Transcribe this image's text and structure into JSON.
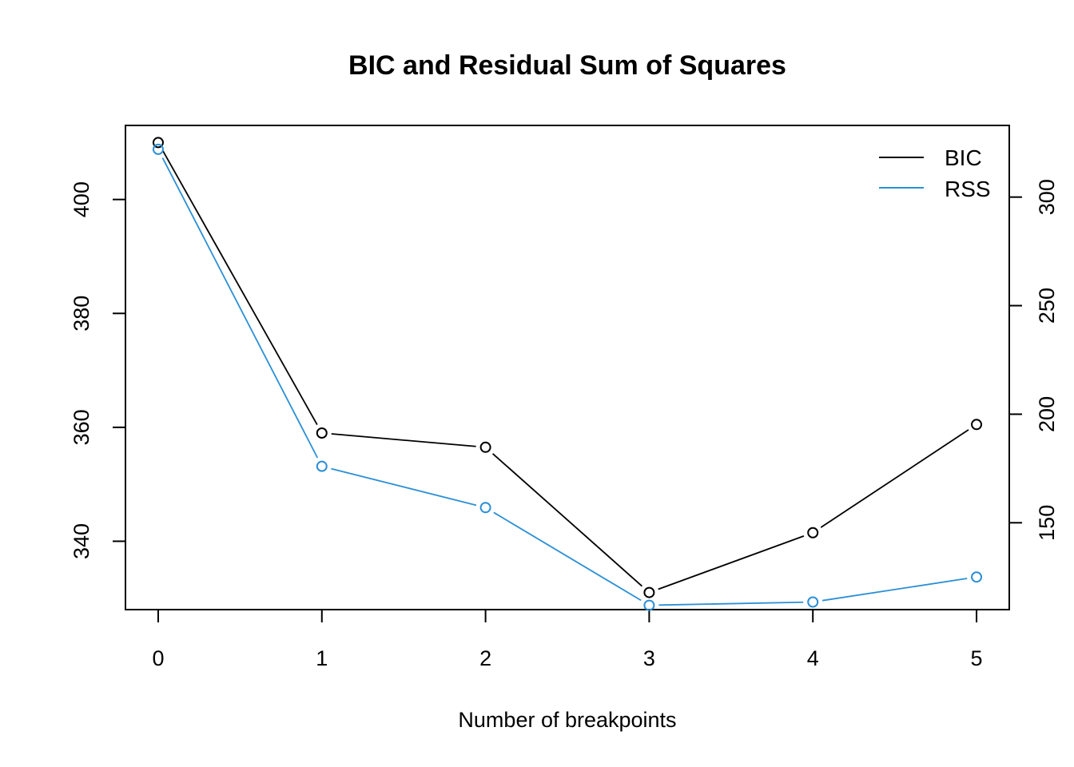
{
  "chart_data": {
    "type": "line",
    "title": "BIC and Residual Sum of Squares",
    "xlabel": "Number of breakpoints",
    "ylabel": "",
    "y2label": "",
    "x": [
      0,
      1,
      2,
      3,
      4,
      5
    ],
    "xlim": [
      -0.2,
      5.2
    ],
    "ylim": [
      328,
      413
    ],
    "y2lim": [
      110,
      333
    ],
    "yticks": [
      340,
      360,
      380,
      400
    ],
    "y2ticks": [
      150,
      200,
      250,
      300
    ],
    "series": [
      {
        "name": "BIC",
        "axis": "left",
        "color": "#000000",
        "values": [
          410,
          359,
          356.5,
          331,
          341.5,
          360.5
        ]
      },
      {
        "name": "RSS",
        "axis": "right",
        "color": "#2b8fd6",
        "values": [
          322,
          176,
          157,
          112,
          113.5,
          125
        ]
      }
    ],
    "legend": {
      "position": "top-right",
      "entries": [
        "BIC",
        "RSS"
      ]
    },
    "grid": false
  }
}
